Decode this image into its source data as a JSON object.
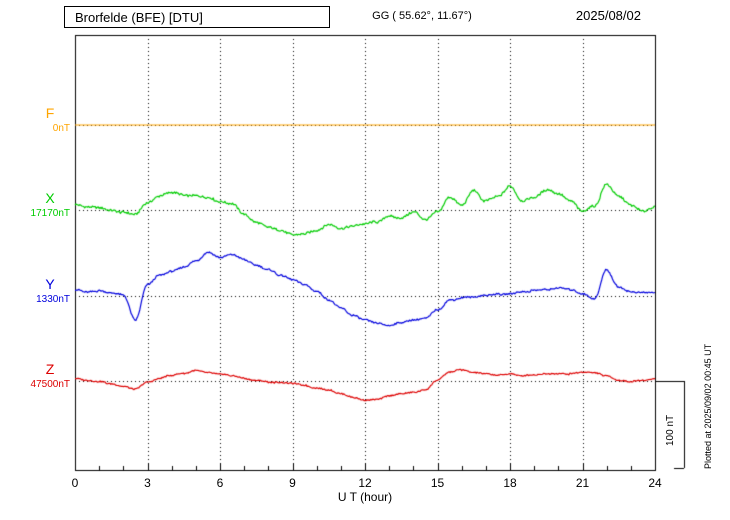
{
  "header": {
    "station": "Brorfelde (BFE)  [DTU]",
    "coords": "GG ( 55.62°,  11.67°)",
    "date": "2025/08/02"
  },
  "side_note": "Plotted at 2025/09/02 00:45 UT",
  "scale_bar": {
    "label": "100 nT",
    "nT": 100
  },
  "chart_data": {
    "type": "line",
    "title": "Brorfelde (BFE) magnetogram",
    "xlabel": "U T (hour)",
    "x_range": [
      0,
      24
    ],
    "x_ticks": [
      0,
      3,
      6,
      9,
      12,
      15,
      18,
      21,
      24
    ],
    "sample_step_hours": 0.5,
    "grid": "dotted",
    "units": "nT offset from each component baseline",
    "series": [
      {
        "name": "F",
        "baseline_label": "0nT",
        "color": "#ffa500",
        "noise": 0,
        "values": [
          0,
          0
        ]
      },
      {
        "name": "X",
        "baseline_label": "17170nT",
        "color": "#00cc00",
        "noise": 2.0,
        "values": [
          6,
          3,
          2,
          0,
          -3,
          -5,
          9,
          16,
          20,
          17,
          16,
          14,
          10,
          7,
          -5,
          -14,
          -20,
          -24,
          -28,
          -27,
          -24,
          -17,
          -21,
          -19,
          -16,
          -14,
          -7,
          -9,
          -2,
          -12,
          -2,
          15,
          5,
          22,
          10,
          16,
          27,
          10,
          15,
          23,
          19,
          10,
          -1,
          5,
          29,
          15,
          5,
          -1,
          3
        ]
      },
      {
        "name": "Y",
        "baseline_label": "1330nT",
        "color": "#0000dd",
        "noise": 1.5,
        "values": [
          7,
          5,
          6,
          3,
          1,
          -28,
          13,
          24,
          28,
          33,
          40,
          50,
          44,
          48,
          42,
          36,
          30,
          24,
          19,
          13,
          5,
          -5,
          -14,
          -22,
          -28,
          -31,
          -34,
          -31,
          -28,
          -26,
          -16,
          -5,
          -2,
          -1,
          1,
          2,
          3,
          5,
          6,
          7,
          9,
          7,
          3,
          -3,
          30,
          10,
          5,
          4,
          4
        ]
      },
      {
        "name": "Z",
        "baseline_label": "47500nT",
        "color": "#dd0000",
        "noise": 1.2,
        "values": [
          3,
          1,
          -1,
          -3,
          -6,
          -9,
          -1,
          3,
          7,
          9,
          12,
          10,
          8,
          6,
          3,
          1,
          -1,
          -2,
          -3,
          -5,
          -8,
          -10,
          -15,
          -19,
          -22,
          -21,
          -17,
          -15,
          -13,
          -10,
          1,
          10,
          13,
          10,
          8,
          7,
          8,
          6,
          7,
          8,
          9,
          8,
          10,
          9,
          6,
          1,
          -1,
          1,
          3
        ]
      }
    ]
  }
}
